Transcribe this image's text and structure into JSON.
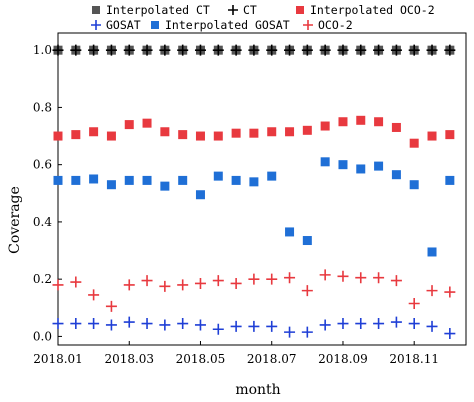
{
  "chart_data": {
    "type": "scatter",
    "xlabel": "month",
    "ylabel": "Coverage",
    "xlim": [
      2018.0,
      2018.9545
    ],
    "ylim": [
      -0.03,
      1.06
    ],
    "x_ticks": [
      {
        "x": 2018.0,
        "label": "2018.01"
      },
      {
        "x": 2018.1667,
        "label": "2018.03"
      },
      {
        "x": 2018.3333,
        "label": "2018.05"
      },
      {
        "x": 2018.5,
        "label": "2018.07"
      },
      {
        "x": 2018.6667,
        "label": "2018.09"
      },
      {
        "x": 2018.8333,
        "label": "2018.11"
      }
    ],
    "y_ticks": [
      {
        "y": 0.0,
        "label": "0.0"
      },
      {
        "y": 0.2,
        "label": "0.2"
      },
      {
        "y": 0.4,
        "label": "0.4"
      },
      {
        "y": 0.6,
        "label": "0.6"
      },
      {
        "y": 0.8,
        "label": "0.8"
      },
      {
        "y": 1.0,
        "label": "1.0"
      }
    ],
    "legend_placement": "top",
    "series": [
      {
        "name": "Interpolated CT",
        "marker": "square",
        "color": "#555555",
        "points": [
          [
            2018.0,
            1.0
          ],
          [
            2018.0417,
            1.0
          ],
          [
            2018.0833,
            1.0
          ],
          [
            2018.125,
            1.0
          ],
          [
            2018.1667,
            1.0
          ],
          [
            2018.2083,
            1.0
          ],
          [
            2018.25,
            1.0
          ],
          [
            2018.2917,
            1.0
          ],
          [
            2018.3333,
            1.0
          ],
          [
            2018.375,
            1.0
          ],
          [
            2018.4167,
            1.0
          ],
          [
            2018.4583,
            1.0
          ],
          [
            2018.5,
            1.0
          ],
          [
            2018.5417,
            1.0
          ],
          [
            2018.5833,
            1.0
          ],
          [
            2018.625,
            1.0
          ],
          [
            2018.6667,
            1.0
          ],
          [
            2018.7083,
            1.0
          ],
          [
            2018.75,
            1.0
          ],
          [
            2018.7917,
            1.0
          ],
          [
            2018.8333,
            1.0
          ],
          [
            2018.875,
            1.0
          ],
          [
            2018.9167,
            1.0
          ]
        ]
      },
      {
        "name": "CT",
        "marker": "plus",
        "color": "#000000",
        "points": [
          [
            2018.0,
            1.0
          ],
          [
            2018.0417,
            1.0
          ],
          [
            2018.0833,
            1.0
          ],
          [
            2018.125,
            1.0
          ],
          [
            2018.1667,
            1.0
          ],
          [
            2018.2083,
            1.0
          ],
          [
            2018.25,
            1.0
          ],
          [
            2018.2917,
            1.0
          ],
          [
            2018.3333,
            1.0
          ],
          [
            2018.375,
            1.0
          ],
          [
            2018.4167,
            1.0
          ],
          [
            2018.4583,
            1.0
          ],
          [
            2018.5,
            1.0
          ],
          [
            2018.5417,
            1.0
          ],
          [
            2018.5833,
            1.0
          ],
          [
            2018.625,
            1.0
          ],
          [
            2018.6667,
            1.0
          ],
          [
            2018.7083,
            1.0
          ],
          [
            2018.75,
            1.0
          ],
          [
            2018.7917,
            1.0
          ],
          [
            2018.8333,
            1.0
          ],
          [
            2018.875,
            1.0
          ],
          [
            2018.9167,
            1.0
          ]
        ]
      },
      {
        "name": "Interpolated OCO-2",
        "marker": "square",
        "color": "#e8393f",
        "points": [
          [
            2018.0,
            0.7
          ],
          [
            2018.0417,
            0.705
          ],
          [
            2018.0833,
            0.715
          ],
          [
            2018.125,
            0.7
          ],
          [
            2018.1667,
            0.74
          ],
          [
            2018.2083,
            0.745
          ],
          [
            2018.25,
            0.715
          ],
          [
            2018.2917,
            0.705
          ],
          [
            2018.3333,
            0.7
          ],
          [
            2018.375,
            0.7
          ],
          [
            2018.4167,
            0.71
          ],
          [
            2018.4583,
            0.71
          ],
          [
            2018.5,
            0.715
          ],
          [
            2018.5417,
            0.715
          ],
          [
            2018.5833,
            0.72
          ],
          [
            2018.625,
            0.735
          ],
          [
            2018.6667,
            0.75
          ],
          [
            2018.7083,
            0.755
          ],
          [
            2018.75,
            0.75
          ],
          [
            2018.7917,
            0.73
          ],
          [
            2018.8333,
            0.675
          ],
          [
            2018.875,
            0.7
          ],
          [
            2018.9167,
            0.705
          ]
        ]
      },
      {
        "name": "Interpolated GOSAT",
        "marker": "square",
        "color": "#1f6fd6",
        "points": [
          [
            2018.0,
            0.545
          ],
          [
            2018.0417,
            0.545
          ],
          [
            2018.0833,
            0.55
          ],
          [
            2018.125,
            0.53
          ],
          [
            2018.1667,
            0.545
          ],
          [
            2018.2083,
            0.545
          ],
          [
            2018.25,
            0.525
          ],
          [
            2018.2917,
            0.545
          ],
          [
            2018.3333,
            0.495
          ],
          [
            2018.375,
            0.56
          ],
          [
            2018.4167,
            0.545
          ],
          [
            2018.4583,
            0.54
          ],
          [
            2018.5,
            0.56
          ],
          [
            2018.5417,
            0.365
          ],
          [
            2018.5833,
            0.335
          ],
          [
            2018.625,
            0.61
          ],
          [
            2018.6667,
            0.6
          ],
          [
            2018.7083,
            0.585
          ],
          [
            2018.75,
            0.595
          ],
          [
            2018.7917,
            0.565
          ],
          [
            2018.8333,
            0.53
          ],
          [
            2018.875,
            0.295
          ],
          [
            2018.9167,
            0.545
          ]
        ]
      },
      {
        "name": "GOSAT",
        "marker": "plus",
        "color": "#1f3fd6",
        "points": [
          [
            2018.0,
            0.045
          ],
          [
            2018.0417,
            0.045
          ],
          [
            2018.0833,
            0.045
          ],
          [
            2018.125,
            0.04
          ],
          [
            2018.1667,
            0.05
          ],
          [
            2018.2083,
            0.045
          ],
          [
            2018.25,
            0.04
          ],
          [
            2018.2917,
            0.045
          ],
          [
            2018.3333,
            0.04
          ],
          [
            2018.375,
            0.025
          ],
          [
            2018.4167,
            0.035
          ],
          [
            2018.4583,
            0.035
          ],
          [
            2018.5,
            0.035
          ],
          [
            2018.5417,
            0.015
          ],
          [
            2018.5833,
            0.015
          ],
          [
            2018.625,
            0.04
          ],
          [
            2018.6667,
            0.045
          ],
          [
            2018.7083,
            0.045
          ],
          [
            2018.75,
            0.045
          ],
          [
            2018.7917,
            0.05
          ],
          [
            2018.8333,
            0.045
          ],
          [
            2018.875,
            0.035
          ],
          [
            2018.9167,
            0.01
          ]
        ]
      },
      {
        "name": "OCO-2",
        "marker": "plus",
        "color": "#e8393f",
        "points": [
          [
            2018.0,
            0.18
          ],
          [
            2018.0417,
            0.19
          ],
          [
            2018.0833,
            0.145
          ],
          [
            2018.125,
            0.105
          ],
          [
            2018.1667,
            0.18
          ],
          [
            2018.2083,
            0.195
          ],
          [
            2018.25,
            0.175
          ],
          [
            2018.2917,
            0.18
          ],
          [
            2018.3333,
            0.185
          ],
          [
            2018.375,
            0.195
          ],
          [
            2018.4167,
            0.185
          ],
          [
            2018.4583,
            0.2
          ],
          [
            2018.5,
            0.2
          ],
          [
            2018.5417,
            0.205
          ],
          [
            2018.5833,
            0.16
          ],
          [
            2018.625,
            0.215
          ],
          [
            2018.6667,
            0.21
          ],
          [
            2018.7083,
            0.205
          ],
          [
            2018.75,
            0.205
          ],
          [
            2018.7917,
            0.195
          ],
          [
            2018.8333,
            0.115
          ],
          [
            2018.875,
            0.16
          ],
          [
            2018.9167,
            0.155
          ]
        ]
      }
    ]
  }
}
